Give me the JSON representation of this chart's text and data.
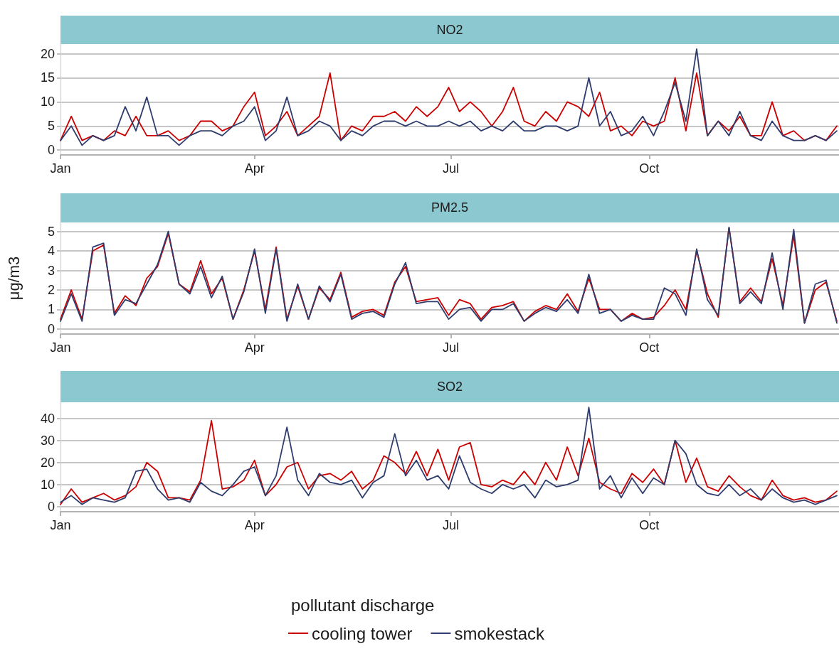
{
  "chart_data": [
    {
      "type": "line",
      "title": "NO2",
      "x": [
        "--01-01",
        "--01-06",
        "--01-11",
        "--01-16",
        "--01-21",
        "--01-26",
        "--01-31",
        "--02-05",
        "--02-10",
        "--02-15",
        "--02-20",
        "--02-25",
        "--03-02",
        "--03-07",
        "--03-12",
        "--03-17",
        "--03-22",
        "--03-27",
        "--04-01",
        "--04-06",
        "--04-11",
        "--04-16",
        "--04-21",
        "--04-26",
        "--05-01",
        "--05-06",
        "--05-11",
        "--05-16",
        "--05-21",
        "--05-26",
        "--05-31",
        "--06-05",
        "--06-10",
        "--06-15",
        "--06-20",
        "--06-25",
        "--06-30",
        "--07-05",
        "--07-10",
        "--07-15",
        "--07-20",
        "--07-25",
        "--07-30",
        "--08-04",
        "--08-09",
        "--08-14",
        "--08-19",
        "--08-24",
        "--08-29",
        "--09-03",
        "--09-08",
        "--09-13",
        "--09-18",
        "--09-23",
        "--09-28",
        "--10-03",
        "--10-08",
        "--10-13",
        "--10-18",
        "--10-23",
        "--10-28",
        "--11-02",
        "--11-07",
        "--11-12",
        "--11-17",
        "--11-22",
        "--11-27",
        "--12-02",
        "--12-07",
        "--12-12",
        "--12-17",
        "--12-22",
        "--12-27"
      ],
      "xlim": [
        "--01-01",
        "--12-28"
      ],
      "xticks": [
        {
          "value": "--01-01",
          "label": "Jan"
        },
        {
          "value": "--04-01",
          "label": "Apr"
        },
        {
          "value": "--07-01",
          "label": "Jul"
        },
        {
          "value": "--10-01",
          "label": "Oct"
        }
      ],
      "ylim": [
        -1,
        22
      ],
      "yticks": [
        0,
        5,
        10,
        15,
        20
      ],
      "grid": "y",
      "legend": false,
      "marker": "none",
      "line_style": "solid",
      "series": [
        {
          "color": "#cc0000",
          "values": [
            2,
            7,
            2,
            3,
            2,
            4,
            3,
            7,
            3,
            3,
            4,
            2,
            3,
            6,
            6,
            4,
            5,
            9,
            12,
            3,
            5,
            8,
            3,
            5,
            7,
            16,
            2,
            5,
            4,
            7,
            7,
            8,
            6,
            9,
            7,
            9,
            13,
            8,
            10,
            8,
            5,
            8,
            13,
            6,
            5,
            8,
            6,
            10,
            9,
            7,
            12,
            4,
            5,
            3,
            6,
            5,
            6,
            15,
            4,
            16,
            3,
            6,
            4,
            7,
            3,
            3,
            10,
            3,
            4,
            2,
            3,
            2,
            5
          ]
        },
        {
          "color": "#2f3d6e",
          "values": [
            2,
            5,
            1,
            3,
            2,
            3,
            9,
            4,
            11,
            3,
            3,
            1,
            3,
            4,
            4,
            3,
            5,
            6,
            9,
            2,
            4,
            11,
            3,
            4,
            6,
            5,
            2,
            4,
            3,
            5,
            6,
            6,
            5,
            6,
            5,
            5,
            6,
            5,
            6,
            4,
            5,
            4,
            6,
            4,
            4,
            5,
            5,
            4,
            5,
            15,
            5,
            8,
            3,
            4,
            7,
            3,
            8,
            14,
            6,
            21,
            3,
            6,
            3,
            8,
            3,
            2,
            6,
            3,
            2,
            2,
            3,
            2,
            4
          ]
        }
      ]
    },
    {
      "type": "line",
      "title": "PM2.5",
      "ylabel": "μg/m3",
      "x": [
        "--01-01",
        "--01-06",
        "--01-11",
        "--01-16",
        "--01-21",
        "--01-26",
        "--01-31",
        "--02-05",
        "--02-10",
        "--02-15",
        "--02-20",
        "--02-25",
        "--03-02",
        "--03-07",
        "--03-12",
        "--03-17",
        "--03-22",
        "--03-27",
        "--04-01",
        "--04-06",
        "--04-11",
        "--04-16",
        "--04-21",
        "--04-26",
        "--05-01",
        "--05-06",
        "--05-11",
        "--05-16",
        "--05-21",
        "--05-26",
        "--05-31",
        "--06-05",
        "--06-10",
        "--06-15",
        "--06-20",
        "--06-25",
        "--06-30",
        "--07-05",
        "--07-10",
        "--07-15",
        "--07-20",
        "--07-25",
        "--07-30",
        "--08-04",
        "--08-09",
        "--08-14",
        "--08-19",
        "--08-24",
        "--08-29",
        "--09-03",
        "--09-08",
        "--09-13",
        "--09-18",
        "--09-23",
        "--09-28",
        "--10-03",
        "--10-08",
        "--10-13",
        "--10-18",
        "--10-23",
        "--10-28",
        "--11-02",
        "--11-07",
        "--11-12",
        "--11-17",
        "--11-22",
        "--11-27",
        "--12-02",
        "--12-07",
        "--12-12",
        "--12-17",
        "--12-22",
        "--12-27"
      ],
      "xlim": [
        "--01-01",
        "--12-28"
      ],
      "xticks": [
        {
          "value": "--01-01",
          "label": "Jan"
        },
        {
          "value": "--04-01",
          "label": "Apr"
        },
        {
          "value": "--07-01",
          "label": "Jul"
        },
        {
          "value": "--10-01",
          "label": "Oct"
        }
      ],
      "ylim": [
        -0.26,
        5.46
      ],
      "yticks": [
        0,
        1,
        2,
        3,
        4,
        5
      ],
      "grid": "y",
      "legend": false,
      "marker": "none",
      "line_style": "solid",
      "series": [
        {
          "color": "#cc0000",
          "values": [
            0.5,
            2.0,
            0.5,
            4.0,
            4.3,
            0.8,
            1.7,
            1.2,
            2.6,
            3.2,
            4.9,
            2.3,
            1.9,
            3.5,
            1.8,
            2.6,
            0.5,
            2.0,
            4.0,
            1.0,
            4.2,
            0.5,
            2.2,
            0.5,
            2.1,
            1.5,
            2.9,
            0.6,
            0.9,
            1.0,
            0.7,
            2.4,
            3.2,
            1.4,
            1.5,
            1.6,
            0.7,
            1.5,
            1.3,
            0.5,
            1.1,
            1.2,
            1.4,
            0.4,
            0.9,
            1.2,
            1.0,
            1.8,
            0.9,
            2.6,
            1.0,
            1.0,
            0.4,
            0.8,
            0.5,
            0.6,
            1.2,
            2.0,
            1.0,
            4.0,
            1.8,
            0.6,
            5.2,
            1.4,
            2.1,
            1.4,
            3.6,
            1.2,
            4.8,
            0.3,
            2.0,
            2.4,
            0.4
          ]
        },
        {
          "color": "#2f3d6e",
          "values": [
            0.4,
            1.8,
            0.4,
            4.2,
            4.4,
            0.7,
            1.5,
            1.3,
            2.3,
            3.3,
            5.0,
            2.3,
            1.8,
            3.2,
            1.6,
            2.7,
            0.5,
            1.9,
            4.1,
            0.8,
            4.1,
            0.4,
            2.3,
            0.5,
            2.2,
            1.4,
            2.8,
            0.5,
            0.8,
            0.9,
            0.6,
            2.3,
            3.4,
            1.3,
            1.4,
            1.4,
            0.5,
            1.0,
            1.1,
            0.4,
            1.0,
            1.0,
            1.3,
            0.4,
            0.8,
            1.1,
            0.9,
            1.5,
            0.8,
            2.8,
            0.8,
            1.0,
            0.4,
            0.7,
            0.5,
            0.5,
            2.1,
            1.8,
            0.7,
            4.1,
            1.5,
            0.7,
            5.2,
            1.3,
            1.9,
            1.3,
            3.9,
            1.0,
            5.1,
            0.3,
            2.3,
            2.5,
            0.3
          ]
        }
      ]
    },
    {
      "type": "line",
      "title": "SO2",
      "legend_title": "pollutant discharge",
      "x": [
        "--01-01",
        "--01-06",
        "--01-11",
        "--01-16",
        "--01-21",
        "--01-26",
        "--01-31",
        "--02-05",
        "--02-10",
        "--02-15",
        "--02-20",
        "--02-25",
        "--03-02",
        "--03-07",
        "--03-12",
        "--03-17",
        "--03-22",
        "--03-27",
        "--04-01",
        "--04-06",
        "--04-11",
        "--04-16",
        "--04-21",
        "--04-26",
        "--05-01",
        "--05-06",
        "--05-11",
        "--05-16",
        "--05-21",
        "--05-26",
        "--05-31",
        "--06-05",
        "--06-10",
        "--06-15",
        "--06-20",
        "--06-25",
        "--06-30",
        "--07-05",
        "--07-10",
        "--07-15",
        "--07-20",
        "--07-25",
        "--07-30",
        "--08-04",
        "--08-09",
        "--08-14",
        "--08-19",
        "--08-24",
        "--08-29",
        "--09-03",
        "--09-08",
        "--09-13",
        "--09-18",
        "--09-23",
        "--09-28",
        "--10-03",
        "--10-08",
        "--10-13",
        "--10-18",
        "--10-23",
        "--10-28",
        "--11-02",
        "--11-07",
        "--11-12",
        "--11-17",
        "--11-22",
        "--11-27",
        "--12-02",
        "--12-07",
        "--12-12",
        "--12-17",
        "--12-22",
        "--12-27"
      ],
      "xlim": [
        "--01-01",
        "--12-28"
      ],
      "xticks": [
        {
          "value": "--01-01",
          "label": "Jan"
        },
        {
          "value": "--04-01",
          "label": "Apr"
        },
        {
          "value": "--07-01",
          "label": "Jul"
        },
        {
          "value": "--10-01",
          "label": "Oct"
        }
      ],
      "ylim": [
        -2.3,
        47.3
      ],
      "yticks": [
        0,
        10,
        20,
        30,
        40
      ],
      "grid": "y",
      "legend": "bottom",
      "marker": "none",
      "line_style": "solid",
      "series": [
        {
          "name": "cooling tower",
          "color": "#cc0000",
          "values": [
            1,
            8,
            2,
            4,
            6,
            3,
            5,
            9,
            20,
            16,
            4,
            4,
            3,
            12,
            39,
            8,
            9,
            12,
            21,
            5,
            10,
            18,
            20,
            8,
            14,
            15,
            12,
            16,
            8,
            12,
            23,
            20,
            15,
            25,
            14,
            26,
            12,
            27,
            29,
            10,
            9,
            12,
            10,
            16,
            10,
            20,
            12,
            27,
            14,
            31,
            11,
            8,
            6,
            15,
            11,
            17,
            10,
            30,
            11,
            22,
            9,
            7,
            14,
            9,
            5,
            3,
            12,
            5,
            3,
            4,
            2,
            3,
            7
          ]
        },
        {
          "name": "smokestack",
          "color": "#2f3d6e",
          "values": [
            2,
            5,
            1,
            4,
            3,
            2,
            4,
            16,
            17,
            8,
            3,
            4,
            2,
            11,
            7,
            5,
            10,
            16,
            18,
            5,
            14,
            36,
            12,
            5,
            15,
            11,
            10,
            12,
            4,
            11,
            14,
            33,
            14,
            21,
            12,
            14,
            8,
            23,
            11,
            8,
            6,
            10,
            8,
            10,
            4,
            12,
            9,
            10,
            12,
            45,
            8,
            14,
            4,
            13,
            6,
            13,
            10,
            30,
            24,
            10,
            6,
            5,
            10,
            5,
            8,
            3,
            8,
            4,
            2,
            3,
            1,
            3,
            5
          ]
        }
      ]
    }
  ]
}
